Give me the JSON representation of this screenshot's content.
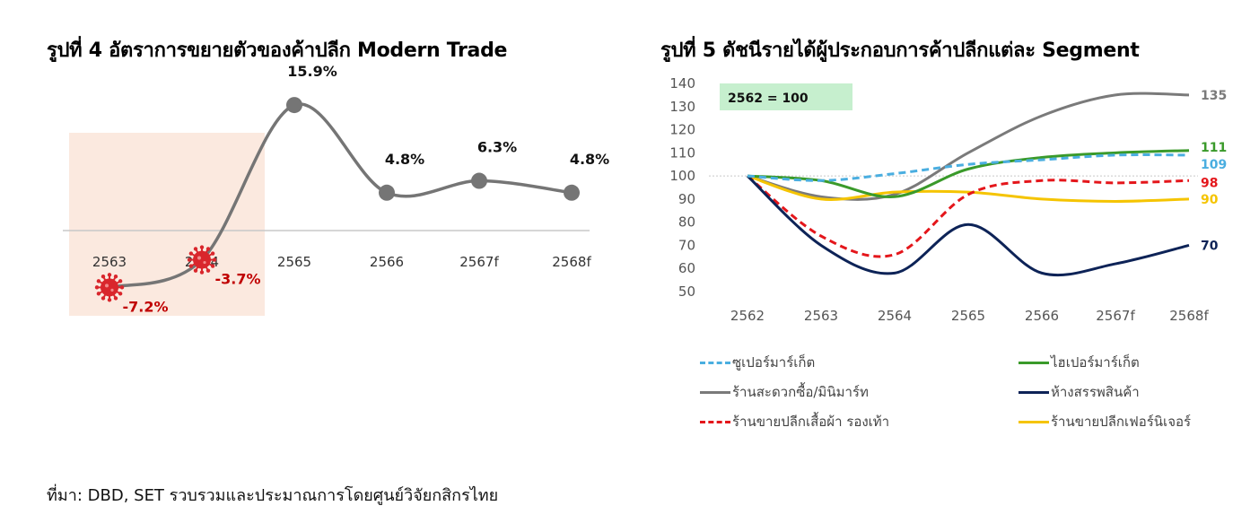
{
  "figure1": {
    "title": "รูปที่ 4 อัตราการขยายตัวของค้าปลีก Modern Trade",
    "chart_data": {
      "type": "line",
      "categories": [
        "2563",
        "2564",
        "2565",
        "2566",
        "2567f",
        "2568f"
      ],
      "values": [
        -7.2,
        -3.7,
        15.9,
        4.8,
        6.3,
        4.8
      ],
      "data_labels": [
        "-7.2%",
        "-3.7%",
        "15.9%",
        "4.8%",
        "6.3%",
        "4.8%"
      ],
      "shaded_categories": [
        "2563",
        "2564"
      ],
      "covid_marked_categories": [
        "2563",
        "2564"
      ],
      "colors": {
        "line": "#757575",
        "negative_label": "#c00000",
        "shade": "#fbe9df",
        "virus": "#d9262c"
      }
    }
  },
  "figure2": {
    "title": "รูปที่ 5 ดัชนีรายได้ผู้ประกอบการค้าปลีกแต่ละ Segment",
    "annotation": "2562 = 100",
    "chart_data": {
      "type": "line",
      "categories": [
        "2562",
        "2563",
        "2564",
        "2565",
        "2566",
        "2567f",
        "2568f"
      ],
      "ylim": [
        50,
        140
      ],
      "yticks": [
        "50",
        "60",
        "70",
        "80",
        "90",
        "100",
        "110",
        "120",
        "130",
        "140"
      ],
      "reference_line": 100,
      "series": [
        {
          "name": "ซูเปอร์มาร์เก็ต",
          "values": [
            100,
            98,
            101,
            105,
            107,
            109,
            109
          ],
          "end_label": "109",
          "color": "#4aaee0",
          "dash": true
        },
        {
          "name": "ไฮเปอร์มาร์เก็ต",
          "values": [
            100,
            98,
            91,
            103,
            108,
            110,
            111
          ],
          "end_label": "111",
          "color": "#3a9a2a",
          "dash": false
        },
        {
          "name": "ร้านสะดวกซื้อ/มินิมาร์ท",
          "values": [
            100,
            91,
            92,
            110,
            126,
            135,
            135
          ],
          "end_label": "135",
          "color": "#7a7a7a",
          "dash": false
        },
        {
          "name": "ห้างสรรพสินค้า",
          "values": [
            100,
            70,
            58,
            79,
            58,
            62,
            70
          ],
          "end_label": "70",
          "color": "#0d2357",
          "dash": false
        },
        {
          "name": "ร้านขายปลีกเสื้อผ้า รองเท้า",
          "values": [
            100,
            74,
            66,
            92,
            98,
            97,
            98
          ],
          "end_label": "98",
          "color": "#e4161b",
          "dash": true
        },
        {
          "name": "ร้านขายปลีกเฟอร์นิเจอร์",
          "values": [
            100,
            90,
            93,
            93,
            90,
            89,
            90
          ],
          "end_label": "90",
          "color": "#f5c400",
          "dash": false
        }
      ],
      "colors": {
        "annotation_bg": "#c6efce",
        "reference_line": "#c8c8c8"
      }
    }
  },
  "source": "ที่มา: DBD, SET รวบรวมและประมาณการโดยศูนย์วิจัยกสิกรไทย"
}
